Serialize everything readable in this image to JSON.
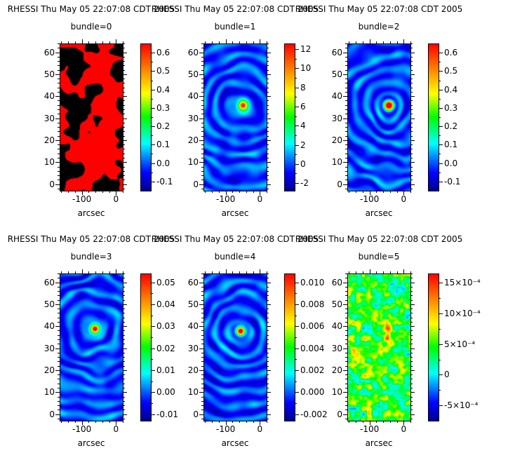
{
  "figure": {
    "background": "#ffffff",
    "text_color": "#000000"
  },
  "chart_data": {
    "type": "heatmap",
    "description": "Grid of six RHESSI back-projection map panels, one per collimator bundle, each with a rainbow colorbar",
    "x_axis": {
      "label": "arcsec",
      "range": [
        -165,
        20
      ],
      "minor_step": 20,
      "ticks": [
        {
          "value": -100,
          "label": "-100"
        },
        {
          "value": 0,
          "label": "0"
        }
      ]
    },
    "y_axis": {
      "range": [
        -3,
        64
      ],
      "minor_step": 2,
      "ticks": [
        {
          "value": 0,
          "label": "0"
        },
        {
          "value": 10,
          "label": "10"
        },
        {
          "value": 20,
          "label": "20"
        },
        {
          "value": 30,
          "label": "30"
        },
        {
          "value": 40,
          "label": "40"
        },
        {
          "value": 50,
          "label": "50"
        },
        {
          "value": 60,
          "label": "60"
        }
      ]
    },
    "colormap": "rainbow",
    "panels": [
      {
        "title": "RHESSI Thu May 05 22:07:08 CDT 2005",
        "subtitle": "bundle=0",
        "colorbar": {
          "range": [
            -0.15,
            0.65
          ],
          "ticks": [
            {
              "value": 0.6,
              "label": "0.6"
            },
            {
              "value": 0.5,
              "label": "0.5"
            },
            {
              "value": 0.4,
              "label": "0.4"
            },
            {
              "value": 0.3,
              "label": "0.3"
            },
            {
              "value": 0.2,
              "label": "0.2"
            },
            {
              "value": 0.1,
              "label": "0.1"
            },
            {
              "value": 0.0,
              "label": "0.0"
            },
            {
              "value": -0.1,
              "label": "-0.1"
            }
          ]
        },
        "image": {
          "pattern": "saturated",
          "seed": 5,
          "source": null
        }
      },
      {
        "title": "RHESSI Thu May 05 22:07:08 CDT 2005",
        "subtitle": "bundle=1",
        "colorbar": {
          "range": [
            -2.8,
            12.6
          ],
          "ticks": [
            {
              "value": 12,
              "label": "12"
            },
            {
              "value": 10,
              "label": "10"
            },
            {
              "value": 8,
              "label": "8"
            },
            {
              "value": 6,
              "label": "6"
            },
            {
              "value": 4,
              "label": "4"
            },
            {
              "value": 2,
              "label": "2"
            },
            {
              "value": 0,
              "label": "0"
            },
            {
              "value": -2,
              "label": "-2"
            }
          ]
        },
        "image": {
          "pattern": "source",
          "seed": 11,
          "source": {
            "x": -50,
            "y": 36
          }
        }
      },
      {
        "title": "RHESSI Thu May 05 22:07:08 CDT 2005",
        "subtitle": "bundle=2",
        "colorbar": {
          "range": [
            -0.15,
            0.65
          ],
          "ticks": [
            {
              "value": 0.6,
              "label": "0.6"
            },
            {
              "value": 0.5,
              "label": "0.5"
            },
            {
              "value": 0.4,
              "label": "0.4"
            },
            {
              "value": 0.3,
              "label": "0.3"
            },
            {
              "value": 0.2,
              "label": "0.2"
            },
            {
              "value": 0.1,
              "label": "0.1"
            },
            {
              "value": 0.0,
              "label": "0.0"
            },
            {
              "value": -0.1,
              "label": "-0.1"
            }
          ]
        },
        "image": {
          "pattern": "source",
          "seed": 23,
          "source": {
            "x": -44,
            "y": 36
          }
        }
      },
      {
        "title": "RHESSI Thu May 05 22:07:08 CDT 2005",
        "subtitle": "bundle=3",
        "colorbar": {
          "range": [
            -0.013,
            0.054
          ],
          "ticks": [
            {
              "value": 0.05,
              "label": "0.05"
            },
            {
              "value": 0.04,
              "label": "0.04"
            },
            {
              "value": 0.03,
              "label": "0.03"
            },
            {
              "value": 0.02,
              "label": "0.02"
            },
            {
              "value": 0.01,
              "label": "0.01"
            },
            {
              "value": 0.0,
              "label": "0.00"
            },
            {
              "value": -0.01,
              "label": "-0.01"
            }
          ]
        },
        "image": {
          "pattern": "source",
          "seed": 37,
          "source": {
            "x": -62,
            "y": 39
          }
        }
      },
      {
        "title": "RHESSI Thu May 05 22:07:08 CDT 2005",
        "subtitle": "bundle=4",
        "colorbar": {
          "range": [
            -0.0026,
            0.0108
          ],
          "ticks": [
            {
              "value": 0.01,
              "label": "0.010"
            },
            {
              "value": 0.008,
              "label": "0.008"
            },
            {
              "value": 0.006,
              "label": "0.006"
            },
            {
              "value": 0.004,
              "label": "0.004"
            },
            {
              "value": 0.002,
              "label": "0.002"
            },
            {
              "value": 0.0,
              "label": "0.000"
            },
            {
              "value": -0.002,
              "label": "-0.002"
            }
          ]
        },
        "image": {
          "pattern": "source",
          "seed": 41,
          "source": {
            "x": -57,
            "y": 38
          }
        }
      },
      {
        "title": "RHESSI Thu May 05 22:07:08 CDT 2005",
        "subtitle": "bundle=5",
        "colorbar": {
          "range": [
            -0.00075,
            0.00165
          ],
          "ticks": [
            {
              "value": 0.0015,
              "label": "15×10⁻⁴"
            },
            {
              "value": 0.001,
              "label": "10×10⁻⁴"
            },
            {
              "value": 0.0005,
              "label": "5×10⁻⁴"
            },
            {
              "value": 0,
              "label": "0"
            },
            {
              "value": -0.0005,
              "label": "-5×10⁻⁴"
            }
          ]
        },
        "image": {
          "pattern": "speckle",
          "seed": 53,
          "source": {
            "x": -48,
            "y": 36
          }
        }
      }
    ]
  }
}
